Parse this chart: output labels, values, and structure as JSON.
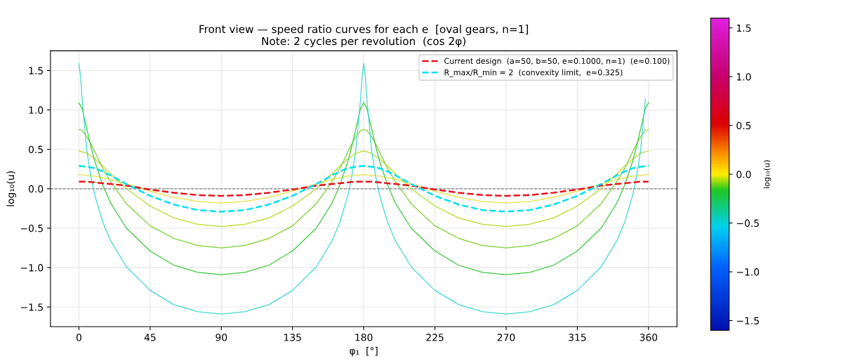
{
  "chart_data": {
    "type": "line",
    "title": "Front view — speed ratio curves for each e  [oval gears, n=1]\nNote: 2 cycles per revolution  (cos 2φ)",
    "xlabel": "φ₁  [°]",
    "ylabel": "log₁₀(u)",
    "clabel": "log₁₀(u)",
    "xlim": [
      -18,
      378
    ],
    "xticks": [
      0,
      45,
      90,
      135,
      180,
      225,
      270,
      315,
      360
    ],
    "ylim": [
      -1.75,
      1.75
    ],
    "yticks": [
      {
        "value": -1.5,
        "label": "−1.5"
      },
      {
        "value": -1.0,
        "label": "−1.0"
      },
      {
        "value": -0.5,
        "label": "−0.5"
      },
      {
        "value": 0,
        "label": "0.0"
      },
      {
        "value": 0.5,
        "label": "0.5"
      },
      {
        "value": 1.0,
        "label": "1.0"
      },
      {
        "value": 1.5,
        "label": "1.5"
      }
    ],
    "clim": [
      -1.6,
      1.6
    ],
    "cticks": [
      {
        "value": -1.5,
        "label": "−1.5"
      },
      {
        "value": -1.0,
        "label": "−1.0"
      },
      {
        "value": -0.5,
        "label": "−0.5"
      },
      {
        "value": 0,
        "label": "0.0"
      },
      {
        "value": 0.5,
        "label": "0.5"
      },
      {
        "value": 1.0,
        "label": "1.0"
      },
      {
        "value": 1.5,
        "label": "1.5"
      }
    ],
    "grid": true,
    "legend": "top right",
    "marker": "none",
    "ref_lines": [
      {
        "axis": "y",
        "value": 0,
        "color": "#808080",
        "line_style": "dashed"
      }
    ],
    "series": [
      {
        "color": "#e8e040",
        "line_style": "solid",
        "x": [
          0,
          5,
          10,
          15,
          20,
          30,
          45,
          60,
          75,
          90,
          105,
          120,
          135,
          150,
          160,
          165,
          170,
          175,
          180,
          185,
          190,
          195,
          200,
          210,
          225,
          240,
          255,
          270,
          285,
          300,
          315,
          330,
          340,
          345,
          350,
          355,
          360
        ],
        "values": [
          0.18,
          0.17,
          0.16,
          0.14,
          0.12,
          0.06,
          -0.03,
          -0.11,
          -0.16,
          -0.18,
          -0.16,
          -0.11,
          -0.03,
          0.06,
          0.12,
          0.14,
          0.16,
          0.17,
          0.18,
          0.17,
          0.16,
          0.14,
          0.12,
          0.06,
          -0.03,
          -0.11,
          -0.16,
          -0.18,
          -0.16,
          -0.11,
          -0.03,
          0.06,
          0.12,
          0.14,
          0.16,
          0.17,
          0.18
        ]
      },
      {
        "color": "#b4dc28",
        "line_style": "solid",
        "x": [
          0,
          5,
          10,
          15,
          20,
          30,
          45,
          60,
          75,
          90,
          105,
          120,
          135,
          150,
          160,
          165,
          170,
          175,
          180,
          185,
          190,
          195,
          200,
          210,
          225,
          240,
          255,
          270,
          285,
          300,
          315,
          330,
          340,
          345,
          350,
          355,
          360
        ],
        "values": [
          0.48,
          0.45,
          0.38,
          0.29,
          0.19,
          0.0,
          -0.22,
          -0.37,
          -0.45,
          -0.48,
          -0.45,
          -0.37,
          -0.22,
          0.0,
          0.19,
          0.29,
          0.38,
          0.45,
          0.48,
          0.45,
          0.38,
          0.29,
          0.19,
          0.0,
          -0.22,
          -0.37,
          -0.45,
          -0.48,
          -0.45,
          -0.37,
          -0.22,
          0.0,
          0.19,
          0.29,
          0.38,
          0.45,
          0.48
        ]
      },
      {
        "color": "#7ad030",
        "line_style": "solid",
        "x": [
          0,
          2,
          5,
          7.5,
          10,
          15,
          20,
          30,
          45,
          60,
          75,
          90,
          105,
          120,
          135,
          150,
          160,
          165,
          170,
          172.5,
          175,
          178,
          180,
          182,
          185,
          187.5,
          190,
          195,
          200,
          210,
          225,
          240,
          255,
          270,
          285,
          300,
          315,
          330,
          340,
          345,
          350,
          352.5,
          355,
          358,
          360
        ],
        "values": [
          0.75,
          0.74,
          0.66,
          0.57,
          0.47,
          0.26,
          0.09,
          -0.19,
          -0.47,
          -0.63,
          -0.72,
          -0.75,
          -0.72,
          -0.63,
          -0.47,
          -0.19,
          0.09,
          0.26,
          0.47,
          0.57,
          0.66,
          0.74,
          0.75,
          0.74,
          0.66,
          0.57,
          0.47,
          0.26,
          0.09,
          -0.19,
          -0.47,
          -0.63,
          -0.72,
          -0.75,
          -0.72,
          -0.63,
          -0.47,
          -0.19,
          0.09,
          0.26,
          0.47,
          0.57,
          0.66,
          0.74,
          0.75
        ]
      },
      {
        "color": "#3cc83c",
        "line_style": "solid",
        "x": [
          0,
          2,
          5,
          7.5,
          10,
          15,
          20,
          30,
          45,
          60,
          75,
          90,
          105,
          120,
          135,
          150,
          160,
          165,
          170,
          172.5,
          175,
          178,
          180,
          182,
          185,
          187.5,
          190,
          195,
          200,
          210,
          225,
          240,
          255,
          270,
          285,
          300,
          315,
          330,
          340,
          345,
          350,
          352.5,
          355,
          358,
          360
        ],
        "values": [
          1.09,
          1.02,
          0.76,
          0.54,
          0.35,
          0.05,
          -0.18,
          -0.5,
          -0.79,
          -0.97,
          -1.06,
          -1.09,
          -1.06,
          -0.97,
          -0.79,
          -0.5,
          -0.18,
          0.05,
          0.35,
          0.54,
          0.76,
          1.02,
          1.09,
          1.02,
          0.76,
          0.54,
          0.35,
          0.05,
          -0.18,
          -0.5,
          -0.79,
          -0.97,
          -1.06,
          -1.09,
          -1.06,
          -0.97,
          -0.79,
          -0.5,
          -0.18,
          0.05,
          0.35,
          0.54,
          0.76,
          1.02,
          1.09
        ]
      },
      {
        "color": "#40d8d0",
        "line_style": "solid",
        "x": [
          0,
          1,
          2,
          5,
          7.5,
          10,
          15,
          20,
          30,
          45,
          60,
          75,
          90,
          105,
          120,
          135,
          150,
          160,
          165,
          170,
          172.5,
          175,
          178,
          179,
          180,
          181,
          182,
          185,
          187.5,
          190,
          195,
          200,
          210,
          225,
          240,
          255,
          270,
          285,
          300,
          315,
          330,
          340,
          345,
          350,
          352.5,
          355,
          358
        ],
        "values": [
          1.59,
          1.43,
          1.14,
          0.49,
          0.16,
          -0.08,
          -0.42,
          -0.66,
          -0.99,
          -1.29,
          -1.47,
          -1.56,
          -1.59,
          -1.56,
          -1.47,
          -1.29,
          -0.99,
          -0.66,
          -0.42,
          -0.08,
          0.16,
          0.49,
          1.14,
          1.43,
          1.59,
          1.43,
          1.14,
          0.49,
          0.16,
          -0.08,
          -0.42,
          -0.66,
          -0.99,
          -1.29,
          -1.47,
          -1.56,
          -1.59,
          -1.56,
          -1.47,
          -1.29,
          -0.99,
          -0.66,
          -0.42,
          -0.08,
          0.16,
          0.49,
          1.14
        ]
      },
      {
        "name": "Current design  (a=50, b=50, e=0.1000, n=1)  (e≈0.100)",
        "color": "#e8121a",
        "line_style": "dashed",
        "x": [
          0,
          5,
          10,
          15,
          20,
          30,
          45,
          60,
          75,
          90,
          105,
          120,
          135,
          150,
          160,
          165,
          170,
          175,
          180,
          185,
          190,
          195,
          200,
          210,
          225,
          240,
          255,
          270,
          285,
          300,
          315,
          330,
          340,
          345,
          350,
          355,
          360
        ],
        "values": [
          0.09,
          0.09,
          0.08,
          0.07,
          0.06,
          0.04,
          -0.01,
          -0.05,
          -0.08,
          -0.09,
          -0.08,
          -0.05,
          -0.01,
          0.04,
          0.06,
          0.07,
          0.08,
          0.09,
          0.09,
          0.09,
          0.08,
          0.07,
          0.06,
          0.04,
          -0.01,
          -0.05,
          -0.08,
          -0.09,
          -0.08,
          -0.05,
          -0.01,
          0.04,
          0.06,
          0.07,
          0.08,
          0.09,
          0.09
        ]
      },
      {
        "name": "R_max/R_min = 2  (convexity limit,  e≈0.325)",
        "color": "#00e0f0",
        "line_style": "dashed",
        "x": [
          0,
          5,
          10,
          15,
          20,
          30,
          45,
          60,
          75,
          90,
          105,
          120,
          135,
          150,
          160,
          165,
          170,
          175,
          180,
          185,
          190,
          195,
          200,
          210,
          225,
          240,
          255,
          270,
          285,
          300,
          315,
          330,
          340,
          345,
          350,
          355,
          360
        ],
        "values": [
          0.29,
          0.28,
          0.26,
          0.22,
          0.17,
          0.06,
          -0.09,
          -0.2,
          -0.27,
          -0.29,
          -0.27,
          -0.2,
          -0.09,
          0.06,
          0.17,
          0.22,
          0.26,
          0.28,
          0.29,
          0.28,
          0.26,
          0.22,
          0.17,
          0.06,
          -0.09,
          -0.2,
          -0.27,
          -0.29,
          -0.27,
          -0.2,
          -0.09,
          0.06,
          0.17,
          0.22,
          0.26,
          0.28,
          0.29
        ]
      }
    ]
  }
}
